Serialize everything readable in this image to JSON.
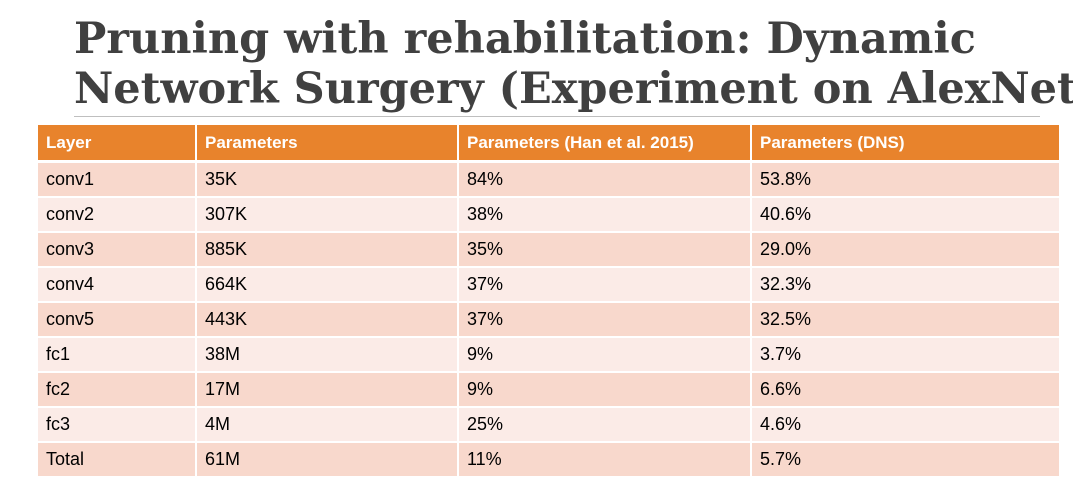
{
  "slide": {
    "title_line1": "Pruning with rehabilitation: Dynamic",
    "title_line2": "Network Surgery (Experiment on AlexNet)"
  },
  "table": {
    "headers": [
      "Layer",
      "Parameters",
      "Parameters (Han et al. 2015)",
      "Parameters (DNS)"
    ],
    "rows": [
      [
        "conv1",
        "35K",
        "84%",
        "53.8%"
      ],
      [
        "conv2",
        "307K",
        "38%",
        "40.6%"
      ],
      [
        "conv3",
        "885K",
        "35%",
        "29.0%"
      ],
      [
        "conv4",
        "664K",
        "37%",
        "32.3%"
      ],
      [
        "conv5",
        "443K",
        "37%",
        "32.5%"
      ],
      [
        "fc1",
        "38M",
        "9%",
        "3.7%"
      ],
      [
        "fc2",
        "17M",
        "9%",
        "6.6%"
      ],
      [
        "fc3",
        "4M",
        "25%",
        "4.6%"
      ],
      [
        "Total",
        "61M",
        "11%",
        "5.7%"
      ]
    ]
  },
  "colors": {
    "header_bg": "#e8832c",
    "row_odd": "#f8d8cc",
    "row_even": "#fbebe7",
    "title_text": "#404040"
  }
}
